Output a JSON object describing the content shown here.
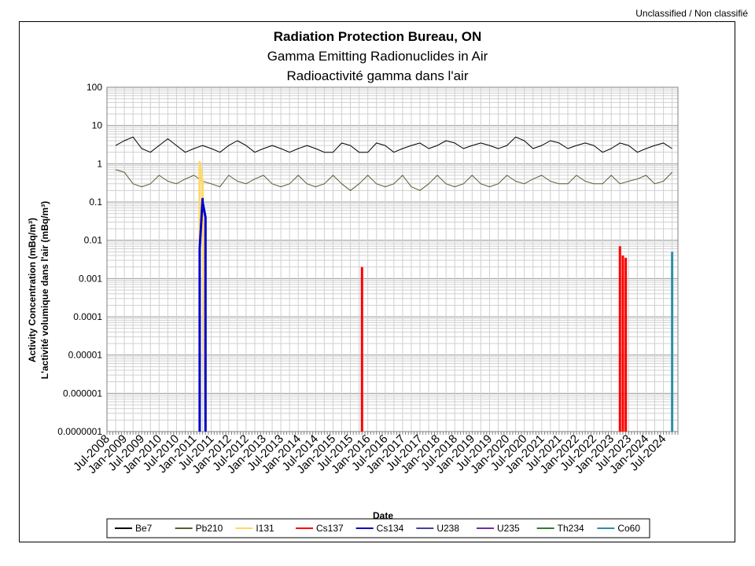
{
  "header": {
    "classification": "Unclassified / Non classifié"
  },
  "chart_data": {
    "type": "line",
    "title": "Radiation Protection Bureau, ON",
    "subtitle_en": "Gamma Emitting Radionuclides in Air",
    "subtitle_fr": "Radioactivité gamma dans l'air",
    "xlabel": "Date",
    "ylabel_en": "Activity Concentration  (mBq/m³)",
    "ylabel_fr": "L'activité volumique dans l'air (mBq/m³)",
    "y_scale": "log",
    "ylim": [
      1e-07,
      100
    ],
    "y_ticks": [
      "100",
      "10",
      "1",
      "0.1",
      "0.01",
      "0.001",
      "0.0001",
      "0.00001",
      "0.000001",
      "0.0000001"
    ],
    "xlim": [
      "2008-07",
      "2024-12"
    ],
    "x_ticks": [
      "Jul-2008",
      "Jan-2009",
      "Jul-2009",
      "Jan-2010",
      "Jul-2010",
      "Jan-2011",
      "Jul-2011",
      "Jan-2012",
      "Jul-2012",
      "Jan-2013",
      "Jul-2013",
      "Jan-2014",
      "Jul-2014",
      "Jan-2015",
      "Jul-2015",
      "Jan-2016",
      "Jul-2016",
      "Jan-2017",
      "Jul-2017",
      "Jan-2018",
      "Jul-2018",
      "Jan-2019",
      "Jul-2019",
      "Jan-2020",
      "Jul-2020",
      "Jan-2021",
      "Jul-2021",
      "Jan-2022",
      "Jul-2022",
      "Jan-2023",
      "Jul-2023",
      "Jan-2024",
      "Jul-2024"
    ],
    "grid": true,
    "legend_position": "bottom",
    "series": [
      {
        "name": "Be7",
        "color": "#000000",
        "x": [
          "2008-10",
          "2009-01",
          "2009-04",
          "2009-07",
          "2009-10",
          "2010-01",
          "2010-04",
          "2010-07",
          "2010-10",
          "2011-01",
          "2011-04",
          "2011-07",
          "2011-10",
          "2012-01",
          "2012-04",
          "2012-07",
          "2012-10",
          "2013-01",
          "2013-04",
          "2013-07",
          "2013-10",
          "2014-01",
          "2014-04",
          "2014-07",
          "2014-10",
          "2015-01",
          "2015-04",
          "2015-07",
          "2015-10",
          "2016-01",
          "2016-04",
          "2016-07",
          "2016-10",
          "2017-01",
          "2017-04",
          "2017-07",
          "2017-10",
          "2018-01",
          "2018-04",
          "2018-07",
          "2018-10",
          "2019-01",
          "2019-04",
          "2019-07",
          "2019-10",
          "2020-01",
          "2020-04",
          "2020-07",
          "2020-10",
          "2021-01",
          "2021-04",
          "2021-07",
          "2021-10",
          "2022-01",
          "2022-04",
          "2022-07",
          "2022-10",
          "2023-01",
          "2023-04",
          "2023-07",
          "2023-10",
          "2024-01",
          "2024-04",
          "2024-07",
          "2024-10"
        ],
        "y": [
          3,
          4,
          5,
          2.5,
          2,
          3,
          4.5,
          3,
          2,
          2.5,
          3,
          2.5,
          2,
          3,
          4,
          3,
          2,
          2.5,
          3,
          2.5,
          2,
          2.5,
          3,
          2.5,
          2,
          2,
          3.5,
          3,
          2,
          2,
          3.5,
          3,
          2,
          2.5,
          3,
          3.5,
          2.5,
          3,
          4,
          3.5,
          2.5,
          3,
          3.5,
          3,
          2.5,
          3,
          5,
          4,
          2.5,
          3,
          4,
          3.5,
          2.5,
          3,
          3.5,
          3,
          2,
          2.5,
          3.5,
          3,
          2,
          2.5,
          3,
          3.5,
          2.5
        ]
      },
      {
        "name": "Pb210",
        "color": "#5a5a32",
        "x": [
          "2008-10",
          "2009-01",
          "2009-04",
          "2009-07",
          "2009-10",
          "2010-01",
          "2010-04",
          "2010-07",
          "2010-10",
          "2011-01",
          "2011-04",
          "2011-07",
          "2011-10",
          "2012-01",
          "2012-04",
          "2012-07",
          "2012-10",
          "2013-01",
          "2013-04",
          "2013-07",
          "2013-10",
          "2014-01",
          "2014-04",
          "2014-07",
          "2014-10",
          "2015-01",
          "2015-04",
          "2015-07",
          "2015-10",
          "2016-01",
          "2016-04",
          "2016-07",
          "2016-10",
          "2017-01",
          "2017-04",
          "2017-07",
          "2017-10",
          "2018-01",
          "2018-04",
          "2018-07",
          "2018-10",
          "2019-01",
          "2019-04",
          "2019-07",
          "2019-10",
          "2020-01",
          "2020-04",
          "2020-07",
          "2020-10",
          "2021-01",
          "2021-04",
          "2021-07",
          "2021-10",
          "2022-01",
          "2022-04",
          "2022-07",
          "2022-10",
          "2023-01",
          "2023-04",
          "2023-07",
          "2023-10",
          "2024-01",
          "2024-04",
          "2024-07",
          "2024-10"
        ],
        "y": [
          0.7,
          0.6,
          0.3,
          0.25,
          0.3,
          0.5,
          0.35,
          0.3,
          0.4,
          0.5,
          0.35,
          0.3,
          0.25,
          0.5,
          0.35,
          0.3,
          0.4,
          0.5,
          0.3,
          0.25,
          0.3,
          0.5,
          0.3,
          0.25,
          0.3,
          0.5,
          0.3,
          0.2,
          0.3,
          0.5,
          0.3,
          0.25,
          0.3,
          0.5,
          0.25,
          0.2,
          0.3,
          0.5,
          0.3,
          0.25,
          0.3,
          0.5,
          0.3,
          0.25,
          0.3,
          0.5,
          0.35,
          0.3,
          0.4,
          0.5,
          0.35,
          0.3,
          0.3,
          0.5,
          0.35,
          0.3,
          0.3,
          0.5,
          0.3,
          0.35,
          0.4,
          0.5,
          0.3,
          0.35,
          0.6
        ]
      },
      {
        "name": "I131",
        "color": "#ffd966",
        "x": [
          "2011-03",
          "2011-03",
          "2011-04",
          "2011-04",
          "2011-05"
        ],
        "y": [
          1e-07,
          1.1,
          0.3,
          0.15,
          1e-07
        ]
      },
      {
        "name": "Cs137",
        "color": "#ff0000",
        "bars": [
          {
            "x": "2015-11",
            "y": 0.002
          },
          {
            "x": "2023-04",
            "y": 0.007
          },
          {
            "x": "2023-05",
            "y": 0.004
          },
          {
            "x": "2023-06",
            "y": 0.0035
          }
        ]
      },
      {
        "name": "Cs134",
        "color": "#0000cc",
        "x": [
          "2011-03",
          "2011-03",
          "2011-04",
          "2011-04",
          "2011-05",
          "2011-05"
        ],
        "y": [
          1e-07,
          0.006,
          0.12,
          0.1,
          0.04,
          1e-07
        ]
      },
      {
        "name": "U238",
        "color": "#4040a0",
        "x": [],
        "y": []
      },
      {
        "name": "U235",
        "color": "#7030a0",
        "x": [],
        "y": []
      },
      {
        "name": "Th234",
        "color": "#2e7d32",
        "x": [],
        "y": []
      },
      {
        "name": "Co60",
        "color": "#2e8fa6",
        "bars": [
          {
            "x": "2024-10",
            "y": 0.005
          }
        ]
      }
    ]
  }
}
